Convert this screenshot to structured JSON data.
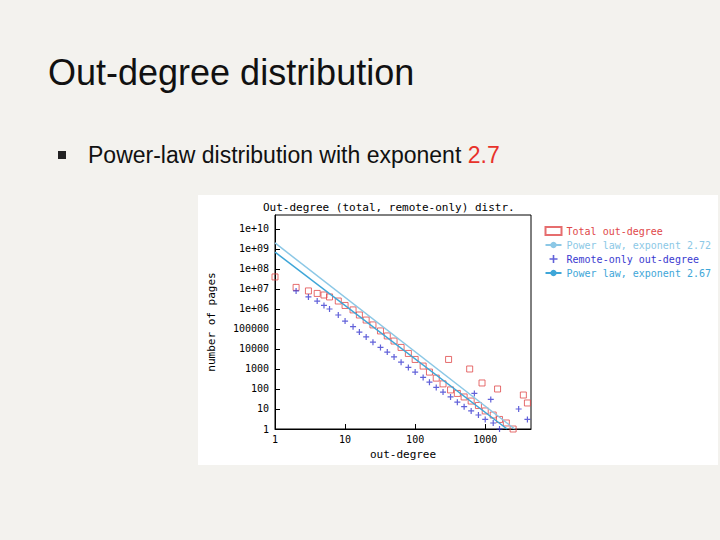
{
  "slide": {
    "title": "Out-degree distribution",
    "bullet": [
      {
        "text": "Power-law distribution with exponent"
      },
      {
        "text": "2.7",
        "color": "#e8322a"
      }
    ]
  },
  "chart_data": {
    "type": "scatter",
    "title": "Out-degree (total, remote-only) distr.",
    "x_label": "out-degree",
    "y_label": "number of pages",
    "log": true,
    "grid": false,
    "legend": "right",
    "xlim": [
      1,
      4500
    ],
    "ylim": [
      1,
      50000000000
    ],
    "xticks": [
      1,
      10,
      100,
      1000
    ],
    "yticks": [
      1,
      10,
      100,
      1000,
      10000,
      100000,
      {
        "value": 1000000,
        "label": "1e+06"
      },
      {
        "value": 10000000,
        "label": "1e+07"
      },
      {
        "value": 100000000,
        "label": "1e+08"
      },
      {
        "value": 1000000000,
        "label": "1e+09"
      },
      {
        "value": 10000000000,
        "label": "1e+10"
      }
    ],
    "series": [
      {
        "name": "Total out-degree",
        "type": "scatter",
        "marker": "square",
        "color": "#e0484a",
        "x": [
          1,
          2,
          3,
          4,
          5,
          6,
          8,
          10,
          13,
          16,
          20,
          25,
          32,
          40,
          50,
          63,
          80,
          100,
          130,
          160,
          200,
          250,
          320,
          400,
          500,
          630,
          800,
          1000,
          1300,
          1600,
          2000,
          2500,
          300,
          600,
          900,
          1500,
          3500,
          4000
        ],
        "values": [
          40000000,
          12000000,
          8000000,
          6000000,
          5000000,
          4000000,
          2500000,
          1500000,
          900000,
          500000,
          280000,
          160000,
          80000,
          45000,
          25000,
          12000,
          6000,
          3000,
          1400,
          700,
          350,
          180,
          90,
          60,
          40,
          25,
          15,
          8,
          5,
          3,
          2,
          1,
          3000,
          1000,
          200,
          100,
          50,
          20
        ]
      },
      {
        "name": "Power law, exponent 2.72",
        "type": "line",
        "line_style": "solid",
        "color": "#8cc8e6",
        "x": [
          1,
          2630
        ],
        "values": [
          2000000000,
          1
        ]
      },
      {
        "name": "Remote-only out-degree",
        "type": "scatter",
        "marker": "plus",
        "color": "#3a3ad0",
        "x": [
          2,
          3,
          4,
          5,
          6,
          8,
          10,
          13,
          16,
          20,
          25,
          32,
          40,
          50,
          63,
          80,
          100,
          130,
          160,
          200,
          250,
          320,
          400,
          500,
          630,
          800,
          1000,
          1300,
          1600,
          700,
          1200,
          3000,
          4000
        ],
        "values": [
          8000000,
          4000000,
          2500000,
          1500000,
          1000000,
          500000,
          250000,
          130000,
          70000,
          40000,
          22000,
          12000,
          7000,
          4000,
          2200,
          1200,
          700,
          380,
          220,
          120,
          70,
          40,
          22,
          13,
          8,
          5,
          3,
          2,
          1,
          60,
          30,
          10,
          3
        ]
      },
      {
        "name": "Power law, exponent 2.67",
        "type": "line",
        "line_style": "solid",
        "color": "#3ea6d8",
        "x": [
          1,
          2050
        ],
        "values": [
          700000000,
          1
        ]
      }
    ]
  }
}
